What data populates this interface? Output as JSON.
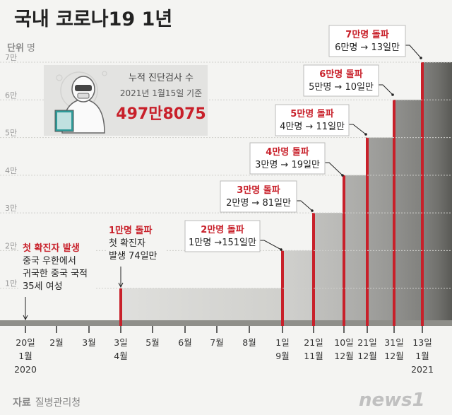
{
  "title": "국내 코로나19 1년",
  "unit": {
    "label": "단위",
    "value": "명"
  },
  "source": {
    "label": "자료",
    "value": "질병관리청"
  },
  "logo": "news1",
  "stat_box": {
    "label": "누적 진단검사 수",
    "date": "2021년 1월15일 기준",
    "value": "497만8075"
  },
  "chart_data": {
    "type": "step-area",
    "y_ticks": [
      "1만",
      "2만",
      "3만",
      "4만",
      "5만",
      "6만",
      "7만"
    ],
    "ylim": [
      0,
      70000
    ],
    "x_ticks": [
      {
        "label": [
          "20일",
          "1월",
          "2020"
        ]
      },
      {
        "label": [
          "2월"
        ]
      },
      {
        "label": [
          "3월"
        ]
      },
      {
        "label": [
          "3일",
          "4월"
        ]
      },
      {
        "label": [
          "5월"
        ]
      },
      {
        "label": [
          "6월"
        ]
      },
      {
        "label": [
          "7월"
        ]
      },
      {
        "label": [
          "8월"
        ]
      },
      {
        "label": [
          "1일",
          "9월"
        ]
      },
      {
        "label": [
          "21일",
          "11월"
        ]
      },
      {
        "label": [
          "10일",
          "12월"
        ]
      },
      {
        "label": [
          "21일",
          "12월"
        ]
      },
      {
        "label": [
          "31일",
          "12월"
        ]
      },
      {
        "label": [
          "13일",
          "1월",
          "2021"
        ]
      }
    ],
    "milestones": [
      {
        "date": "2020-01-20",
        "cases": 1,
        "title": "첫 확진자 발생",
        "lines": [
          "중국 우한에서",
          "귀국한 중국 국적",
          "35세 여성"
        ]
      },
      {
        "date": "2020-04-03",
        "cases": 10000,
        "title": "1만명 돌파",
        "lines": [
          "첫 확진자",
          "발생 74일만"
        ]
      },
      {
        "date": "2020-09-01",
        "cases": 20000,
        "title": "2만명 돌파",
        "lines": [
          "1만명 →151일만"
        ]
      },
      {
        "date": "2020-11-21",
        "cases": 30000,
        "title": "3만명 돌파",
        "lines": [
          "2만명 → 81일만"
        ]
      },
      {
        "date": "2020-12-10",
        "cases": 40000,
        "title": "4만명 돌파",
        "lines": [
          "3만명 → 19일만"
        ]
      },
      {
        "date": "2020-12-21",
        "cases": 50000,
        "title": "5만명 돌파",
        "lines": [
          "4만명 → 11일만"
        ]
      },
      {
        "date": "2020-12-31",
        "cases": 60000,
        "title": "6만명 돌파",
        "lines": [
          "5만명 → 10일만"
        ]
      },
      {
        "date": "2021-01-13",
        "cases": 70000,
        "title": "7만명 돌파",
        "lines": [
          "6만명 → 13일만"
        ]
      }
    ],
    "colors": {
      "highlight": "#c8202a",
      "bar": "#8a8a84"
    }
  }
}
